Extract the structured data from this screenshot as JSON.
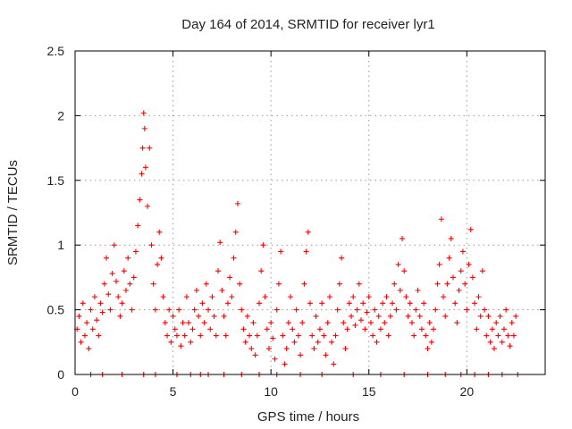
{
  "chart_data": {
    "type": "scatter",
    "title": "Day 164 of 2014, SRMTID for receiver lyr1",
    "xlabel": "GPS time / hours",
    "ylabel": "SRMTID / TECUs",
    "xlim": [
      0,
      24
    ],
    "ylim": [
      0,
      2.5
    ],
    "xticks": [
      0,
      5,
      10,
      15,
      20
    ],
    "xtick_labels": [
      "0",
      "5",
      "10",
      "15",
      "20"
    ],
    "yticks": [
      0,
      0.5,
      1,
      1.5,
      2,
      2.5
    ],
    "ytick_labels": [
      "0",
      "0.5",
      "1",
      "1.5",
      "2",
      "2.5"
    ],
    "grid": true,
    "legend": "none",
    "marker": "+",
    "series": [
      {
        "name": "SRMTID",
        "color": "#ff0000",
        "points": [
          [
            0.1,
            0.35
          ],
          [
            0.2,
            0.45
          ],
          [
            0.3,
            0.25
          ],
          [
            0.4,
            0.55
          ],
          [
            0.5,
            0.3
          ],
          [
            0.6,
            0.4
          ],
          [
            0.7,
            0.2
          ],
          [
            0.8,
            0.5
          ],
          [
            0.9,
            0.35
          ],
          [
            1.0,
            0.6
          ],
          [
            1.1,
            0.42
          ],
          [
            1.2,
            0.3
          ],
          [
            1.3,
            0.55
          ],
          [
            1.4,
            0.48
          ],
          [
            1.5,
            0.7
          ],
          [
            1.6,
            0.9
          ],
          [
            1.7,
            0.62
          ],
          [
            1.8,
            0.5
          ],
          [
            1.9,
            0.78
          ],
          [
            2.0,
            1.0
          ],
          [
            2.1,
            0.72
          ],
          [
            2.2,
            0.6
          ],
          [
            2.3,
            0.45
          ],
          [
            2.4,
            0.55
          ],
          [
            2.5,
            0.8
          ],
          [
            2.6,
            0.65
          ],
          [
            2.7,
            0.9
          ],
          [
            2.8,
            0.7
          ],
          [
            2.9,
            0.5
          ],
          [
            3.0,
            0.75
          ],
          [
            3.1,
            0.95
          ],
          [
            3.2,
            1.15
          ],
          [
            3.3,
            1.35
          ],
          [
            3.4,
            1.55
          ],
          [
            3.45,
            1.75
          ],
          [
            3.5,
            2.02
          ],
          [
            3.55,
            1.9
          ],
          [
            3.6,
            1.6
          ],
          [
            3.7,
            1.3
          ],
          [
            3.8,
            1.75
          ],
          [
            3.9,
            1.0
          ],
          [
            4.0,
            0.7
          ],
          [
            4.1,
            0.5
          ],
          [
            4.2,
            0.85
          ],
          [
            4.3,
            1.1
          ],
          [
            4.4,
            0.9
          ],
          [
            4.5,
            0.6
          ],
          [
            4.6,
            0.4
          ],
          [
            4.7,
            0.3
          ],
          [
            4.8,
            0.5
          ],
          [
            4.9,
            0.25
          ],
          [
            5.0,
            0.45
          ],
          [
            5.1,
            0.35
          ],
          [
            5.2,
            0.3
          ],
          [
            5.3,
            0.5
          ],
          [
            5.4,
            0.22
          ],
          [
            5.5,
            0.4
          ],
          [
            5.6,
            0.3
          ],
          [
            5.7,
            0.6
          ],
          [
            5.8,
            0.4
          ],
          [
            5.9,
            0.25
          ],
          [
            6.0,
            0.35
          ],
          [
            6.1,
            0.5
          ],
          [
            6.2,
            0.65
          ],
          [
            6.3,
            0.45
          ],
          [
            6.4,
            0.3
          ],
          [
            6.5,
            0.55
          ],
          [
            6.6,
            0.4
          ],
          [
            6.7,
            0.7
          ],
          [
            6.8,
            0.5
          ],
          [
            6.9,
            0.35
          ],
          [
            7.0,
            0.6
          ],
          [
            7.1,
            0.45
          ],
          [
            7.2,
            0.3
          ],
          [
            7.3,
            0.8
          ],
          [
            7.4,
            1.02
          ],
          [
            7.5,
            0.65
          ],
          [
            7.6,
            0.45
          ],
          [
            7.7,
            0.3
          ],
          [
            7.8,
            0.55
          ],
          [
            7.9,
            0.75
          ],
          [
            8.0,
            0.6
          ],
          [
            8.1,
            0.9
          ],
          [
            8.2,
            1.1
          ],
          [
            8.3,
            1.32
          ],
          [
            8.4,
            0.7
          ],
          [
            8.5,
            0.5
          ],
          [
            8.6,
            0.35
          ],
          [
            8.7,
            0.25
          ],
          [
            8.8,
            0.45
          ],
          [
            8.9,
            0.3
          ],
          [
            9.0,
            0.2
          ],
          [
            9.1,
            0.4
          ],
          [
            9.2,
            0.15
          ],
          [
            9.3,
            0.3
          ],
          [
            9.4,
            0.55
          ],
          [
            9.5,
            0.8
          ],
          [
            9.6,
            1.0
          ],
          [
            9.7,
            0.6
          ],
          [
            9.8,
            0.35
          ],
          [
            9.9,
            0.2
          ],
          [
            10.0,
            0.4
          ],
          [
            10.1,
            0.28
          ],
          [
            10.2,
            0.12
          ],
          [
            10.3,
            0.5
          ],
          [
            10.4,
            0.7
          ],
          [
            10.5,
            0.95
          ],
          [
            10.6,
            0.3
          ],
          [
            10.7,
            0.08
          ],
          [
            10.8,
            0.2
          ],
          [
            10.9,
            0.4
          ],
          [
            11.0,
            0.6
          ],
          [
            11.1,
            0.35
          ],
          [
            11.2,
            0.25
          ],
          [
            11.3,
            0.5
          ],
          [
            11.4,
            0.3
          ],
          [
            11.5,
            0.15
          ],
          [
            11.6,
            0.4
          ],
          [
            11.7,
            0.7
          ],
          [
            11.8,
            0.95
          ],
          [
            11.9,
            1.1
          ],
          [
            12.0,
            0.55
          ],
          [
            12.1,
            0.3
          ],
          [
            12.2,
            0.2
          ],
          [
            12.3,
            0.45
          ],
          [
            12.4,
            0.25
          ],
          [
            12.5,
            0.35
          ],
          [
            12.6,
            0.55
          ],
          [
            12.7,
            0.3
          ],
          [
            12.8,
            0.15
          ],
          [
            12.9,
            0.4
          ],
          [
            13.0,
            0.6
          ],
          [
            13.1,
            0.25
          ],
          [
            13.2,
            0.08
          ],
          [
            13.3,
            0.3
          ],
          [
            13.4,
            0.5
          ],
          [
            13.5,
            0.7
          ],
          [
            13.6,
            0.9
          ],
          [
            13.7,
            0.4
          ],
          [
            13.8,
            0.2
          ],
          [
            13.9,
            0.35
          ],
          [
            14.0,
            0.55
          ],
          [
            14.1,
            0.45
          ],
          [
            14.2,
            0.6
          ],
          [
            14.3,
            0.38
          ],
          [
            14.4,
            0.5
          ],
          [
            14.5,
            0.7
          ],
          [
            14.6,
            0.42
          ],
          [
            14.7,
            0.55
          ],
          [
            14.8,
            0.35
          ],
          [
            14.9,
            0.48
          ],
          [
            15.0,
            0.6
          ],
          [
            15.1,
            0.4
          ],
          [
            15.2,
            0.3
          ],
          [
            15.3,
            0.5
          ],
          [
            15.4,
            0.25
          ],
          [
            15.5,
            0.45
          ],
          [
            15.6,
            0.35
          ],
          [
            15.7,
            0.55
          ],
          [
            15.8,
            0.4
          ],
          [
            15.9,
            0.6
          ],
          [
            16.0,
            0.3
          ],
          [
            16.1,
            0.45
          ],
          [
            16.2,
            0.55
          ],
          [
            16.3,
            0.7
          ],
          [
            16.4,
            0.5
          ],
          [
            16.5,
            0.85
          ],
          [
            16.6,
            0.65
          ],
          [
            16.7,
            1.05
          ],
          [
            16.8,
            0.8
          ],
          [
            16.9,
            0.6
          ],
          [
            17.0,
            0.45
          ],
          [
            17.1,
            0.55
          ],
          [
            17.2,
            0.4
          ],
          [
            17.3,
            0.3
          ],
          [
            17.4,
            0.5
          ],
          [
            17.5,
            0.65
          ],
          [
            17.6,
            0.45
          ],
          [
            17.7,
            0.35
          ],
          [
            17.8,
            0.55
          ],
          [
            17.9,
            0.3
          ],
          [
            18.0,
            0.2
          ],
          [
            18.1,
            0.4
          ],
          [
            18.2,
            0.25
          ],
          [
            18.3,
            0.35
          ],
          [
            18.4,
            0.5
          ],
          [
            18.5,
            0.7
          ],
          [
            18.6,
            0.85
          ],
          [
            18.7,
            1.2
          ],
          [
            18.8,
            0.6
          ],
          [
            18.9,
            0.45
          ],
          [
            19.0,
            0.7
          ],
          [
            19.1,
            0.9
          ],
          [
            19.2,
            1.05
          ],
          [
            19.3,
            0.75
          ],
          [
            19.4,
            0.55
          ],
          [
            19.5,
            0.4
          ],
          [
            19.6,
            0.65
          ],
          [
            19.7,
            0.8
          ],
          [
            19.8,
            0.95
          ],
          [
            19.9,
            0.7
          ],
          [
            20.0,
            0.5
          ],
          [
            20.1,
            0.85
          ],
          [
            20.2,
            1.12
          ],
          [
            20.3,
            0.75
          ],
          [
            20.4,
            0.55
          ],
          [
            20.5,
            0.35
          ],
          [
            20.6,
            0.6
          ],
          [
            20.7,
            0.45
          ],
          [
            20.8,
            0.8
          ],
          [
            20.9,
            0.5
          ],
          [
            21.0,
            0.3
          ],
          [
            21.1,
            0.45
          ],
          [
            21.2,
            0.25
          ],
          [
            21.3,
            0.35
          ],
          [
            21.4,
            0.2
          ],
          [
            21.5,
            0.4
          ],
          [
            21.6,
            0.3
          ],
          [
            21.7,
            0.45
          ],
          [
            21.8,
            0.25
          ],
          [
            21.9,
            0.35
          ],
          [
            22.0,
            0.5
          ],
          [
            22.1,
            0.3
          ],
          [
            22.2,
            0.22
          ],
          [
            22.3,
            0.4
          ],
          [
            22.4,
            0.3
          ],
          [
            22.5,
            0.45
          ],
          [
            0.8,
            0.0
          ],
          [
            1.4,
            0.0
          ],
          [
            2.4,
            0.0
          ],
          [
            3.5,
            0.0
          ],
          [
            4.1,
            0.0
          ],
          [
            5.2,
            0.0
          ],
          [
            5.9,
            0.0
          ],
          [
            6.4,
            0.0
          ],
          [
            6.8,
            0.0
          ],
          [
            7.6,
            0.0
          ],
          [
            8.5,
            0.0
          ],
          [
            9.4,
            0.0
          ],
          [
            10.3,
            0.0
          ],
          [
            11.5,
            0.0
          ],
          [
            12.6,
            0.0
          ],
          [
            14.2,
            0.0
          ],
          [
            15.6,
            0.0
          ],
          [
            16.8,
            0.0
          ],
          [
            18.0,
            0.0
          ],
          [
            18.9,
            0.0
          ],
          [
            19.7,
            0.0
          ],
          [
            20.4,
            0.0
          ],
          [
            21.1,
            0.0
          ],
          [
            21.8,
            0.0
          ],
          [
            22.6,
            0.0
          ]
        ]
      }
    ]
  }
}
